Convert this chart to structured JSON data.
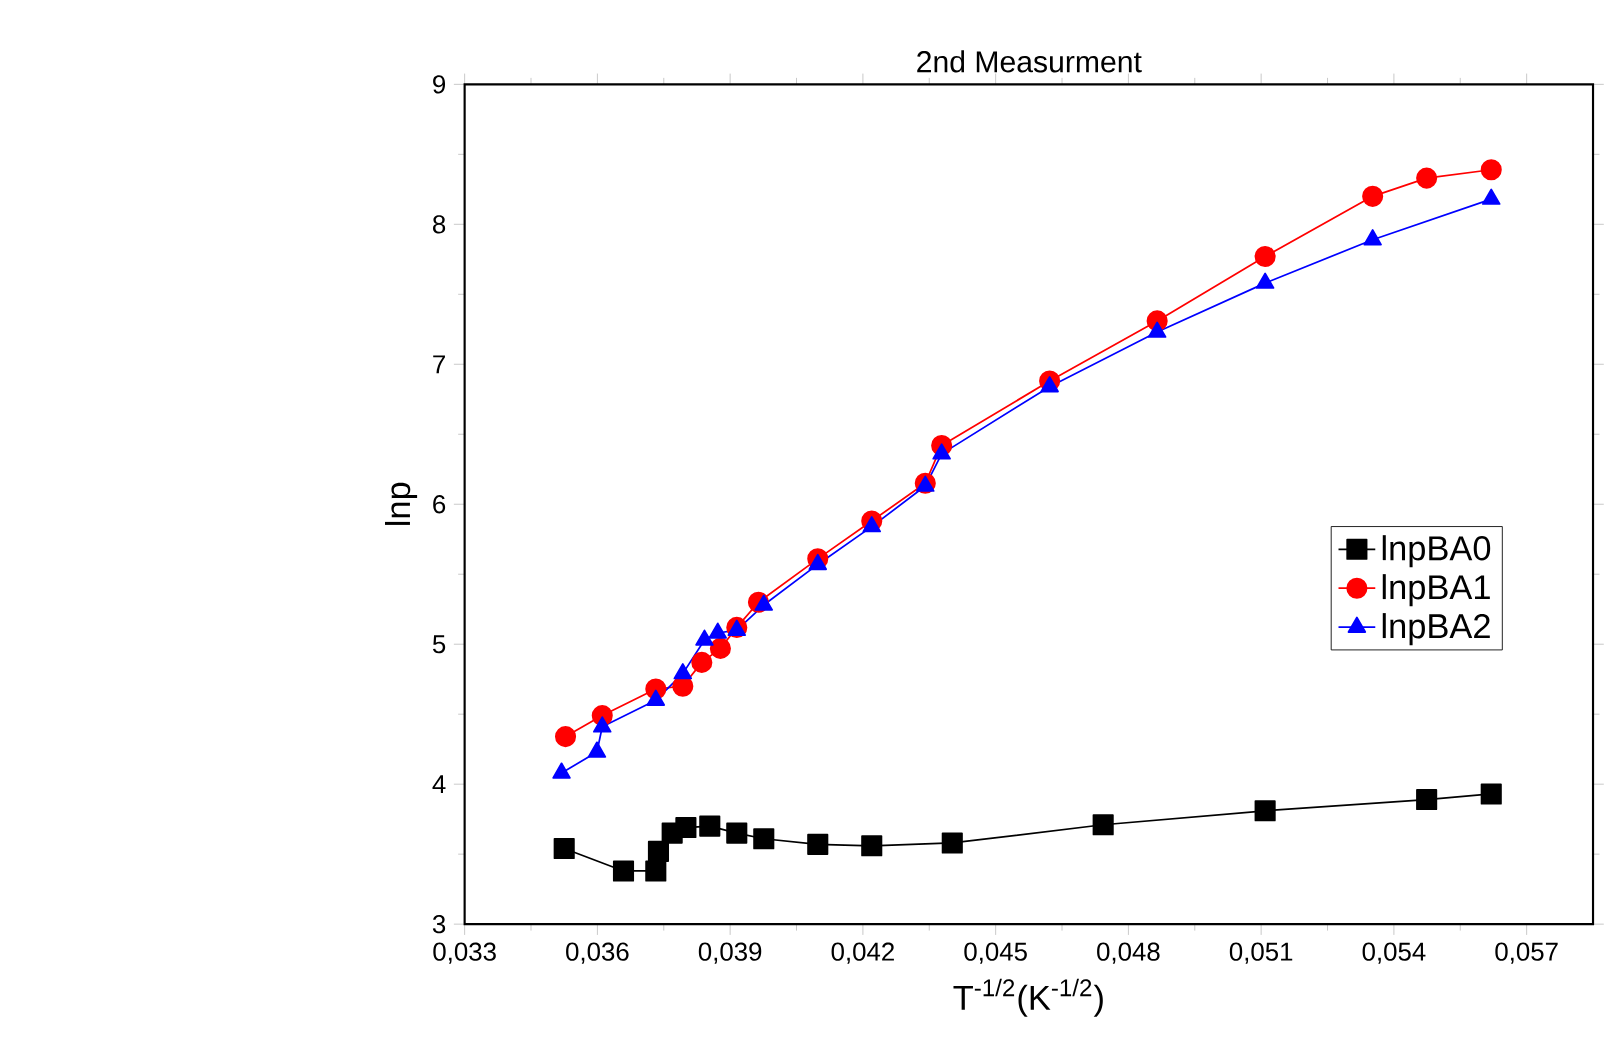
{
  "chart_data": {
    "type": "line",
    "title": "2nd Measurment",
    "xlabel": "T$^{-1/2}$(K$^{-1/2}$)",
    "ylabel": "lnp",
    "xlim": [
      0.033,
      0.0585
    ],
    "ylim": [
      3,
      9
    ],
    "xticks": [
      {
        "value": 0.033,
        "label": "0,033"
      },
      {
        "value": 0.036,
        "label": "0,036"
      },
      {
        "value": 0.039,
        "label": "0,039"
      },
      {
        "value": 0.042,
        "label": "0,042"
      },
      {
        "value": 0.045,
        "label": "0,045"
      },
      {
        "value": 0.048,
        "label": "0,048"
      },
      {
        "value": 0.051,
        "label": "0,051"
      },
      {
        "value": 0.054,
        "label": "0,054"
      },
      {
        "value": 0.057,
        "label": "0,057"
      }
    ],
    "yticks": [
      3,
      4,
      5,
      6,
      7,
      8,
      9
    ],
    "grid": false,
    "legend": "right",
    "series": [
      {
        "name": "lnpBA0",
        "color": "#000000",
        "marker": "square",
        "x": [
          0.03525,
          0.03659,
          0.03732,
          0.03738,
          0.03769,
          0.038,
          0.03854,
          0.03915,
          0.03976,
          0.04098,
          0.0422,
          0.04402,
          0.04743,
          0.05109,
          0.05474,
          0.0562
        ],
        "values": [
          3.54,
          3.38,
          3.38,
          3.52,
          3.65,
          3.69,
          3.7,
          3.65,
          3.61,
          3.57,
          3.56,
          3.58,
          3.71,
          3.81,
          3.89,
          3.93
        ]
      },
      {
        "name": "lnpBA1",
        "color": "#ff0000",
        "marker": "circle",
        "x": [
          0.03528,
          0.03611,
          0.03732,
          0.03793,
          0.03836,
          0.03878,
          0.03915,
          0.03964,
          0.04098,
          0.0422,
          0.04341,
          0.04378,
          0.04622,
          0.04865,
          0.05109,
          0.05352,
          0.05474,
          0.0562
        ],
        "values": [
          4.34,
          4.49,
          4.68,
          4.7,
          4.87,
          4.97,
          5.12,
          5.3,
          5.61,
          5.88,
          6.15,
          6.42,
          6.88,
          7.31,
          7.77,
          8.2,
          8.33,
          8.39
        ]
      },
      {
        "name": "lnpBA2",
        "color": "#0000ff",
        "marker": "triangle",
        "x": [
          0.03519,
          0.03599,
          0.03611,
          0.03732,
          0.03793,
          0.03842,
          0.03872,
          0.03915,
          0.03976,
          0.04098,
          0.0422,
          0.04341,
          0.04378,
          0.04622,
          0.04865,
          0.05109,
          0.05352,
          0.0562
        ],
        "values": [
          4.08,
          4.23,
          4.41,
          4.6,
          4.79,
          5.03,
          5.08,
          5.1,
          5.28,
          5.57,
          5.84,
          6.13,
          6.36,
          6.84,
          7.23,
          7.58,
          7.89,
          8.18
        ]
      }
    ]
  }
}
